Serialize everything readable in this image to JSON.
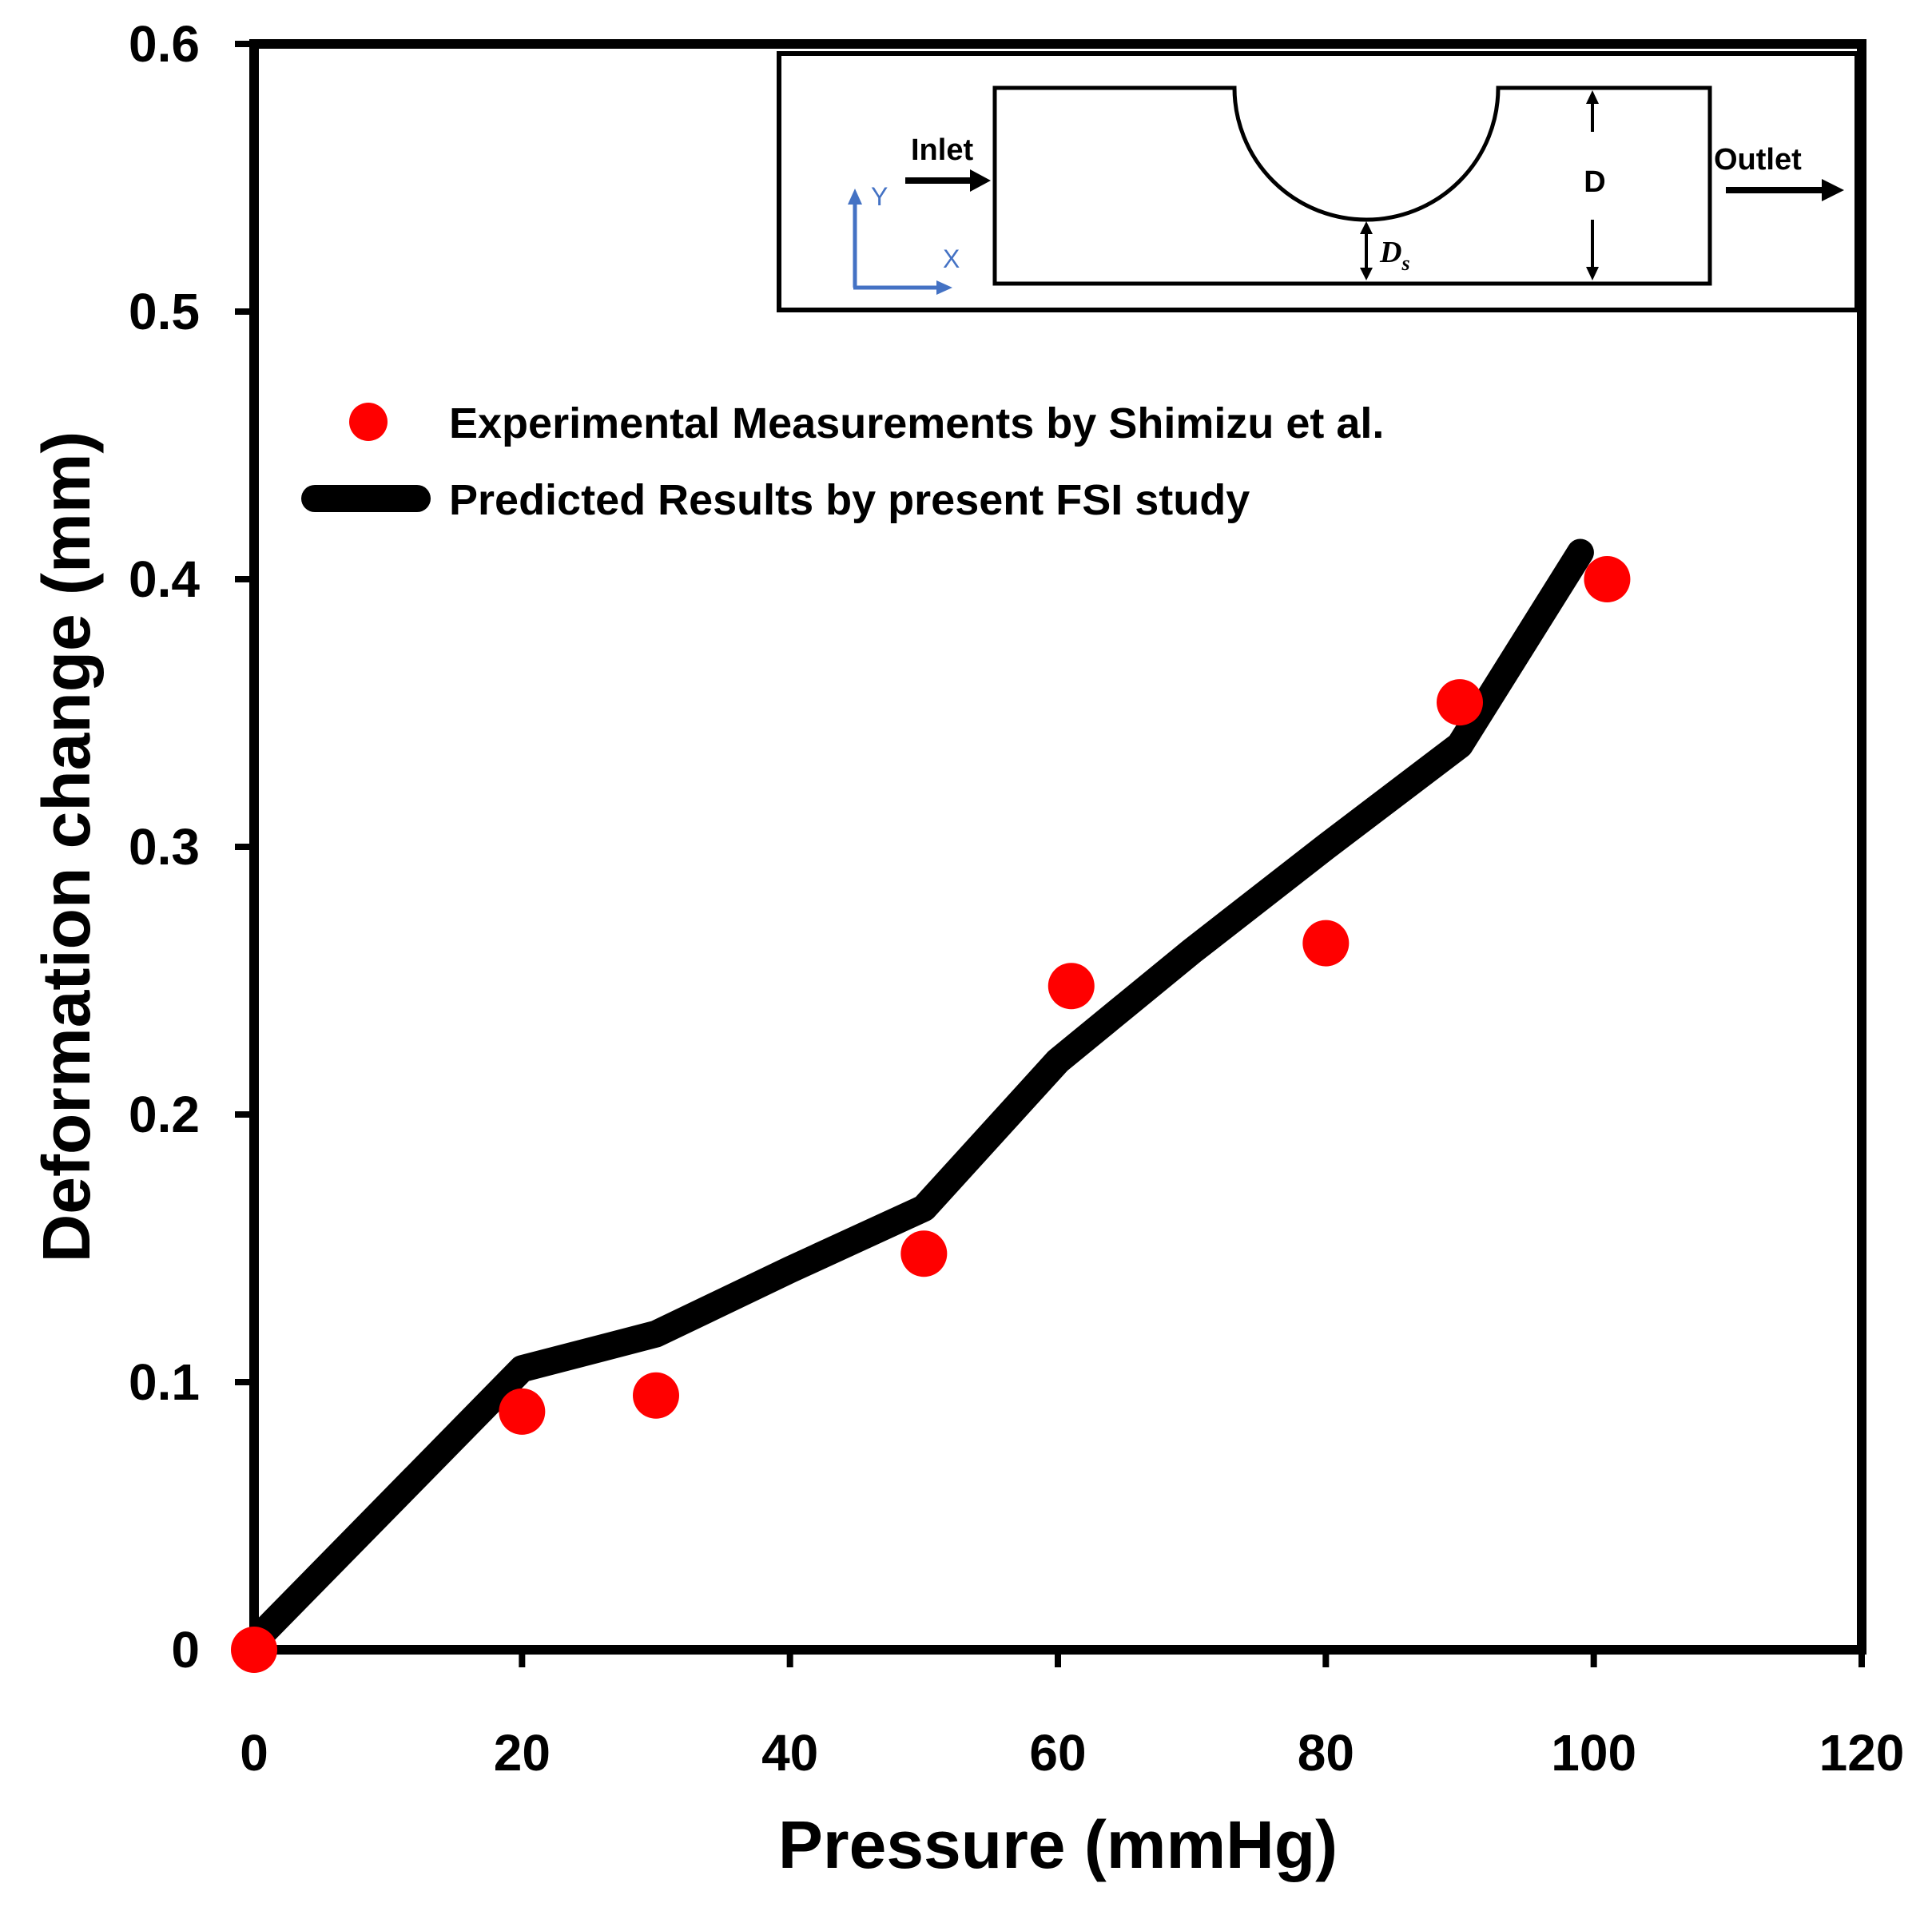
{
  "chart_data": {
    "type": "line",
    "title": "",
    "xlabel": "Pressure (mmHg)",
    "ylabel": "Deformation change (mm)",
    "xlim": [
      0,
      120
    ],
    "ylim": [
      0,
      0.6
    ],
    "xticks": [
      0,
      20,
      40,
      60,
      80,
      100,
      120
    ],
    "yticks": [
      0,
      0.1,
      0.2,
      0.3,
      0.4,
      0.5,
      0.6
    ],
    "xtick_labels": [
      "0",
      "20",
      "40",
      "60",
      "80",
      "100",
      "120"
    ],
    "ytick_labels": [
      "0",
      "0.1",
      "0.2",
      "0.3",
      "0.4",
      "0.5",
      "0.6"
    ],
    "grid": false,
    "legend_position": "upper-left",
    "series": [
      {
        "name": "Experimental Measurements by Shimizu et al.",
        "kind": "scatter",
        "color": "#ff0000",
        "x": [
          0,
          20,
          30,
          50,
          61,
          80,
          90,
          101
        ],
        "y": [
          0.0,
          0.089,
          0.095,
          0.148,
          0.248,
          0.264,
          0.354,
          0.4
        ]
      },
      {
        "name": "Predicted Results by present FSI study",
        "kind": "line",
        "color": "#000000",
        "x": [
          0,
          20,
          30,
          40,
          50,
          60,
          70,
          80,
          90,
          99
        ],
        "y": [
          0.003,
          0.105,
          0.118,
          0.142,
          0.165,
          0.22,
          0.261,
          0.3,
          0.338,
          0.41
        ]
      }
    ]
  },
  "inset": {
    "inlet_label": "Inlet",
    "outlet_label": "Outlet",
    "d_label": "D",
    "ds_label": "D",
    "ds_subscript": "s",
    "y_axis_label": "Y",
    "x_axis_label": "X",
    "axis_color": "#4472c4"
  }
}
